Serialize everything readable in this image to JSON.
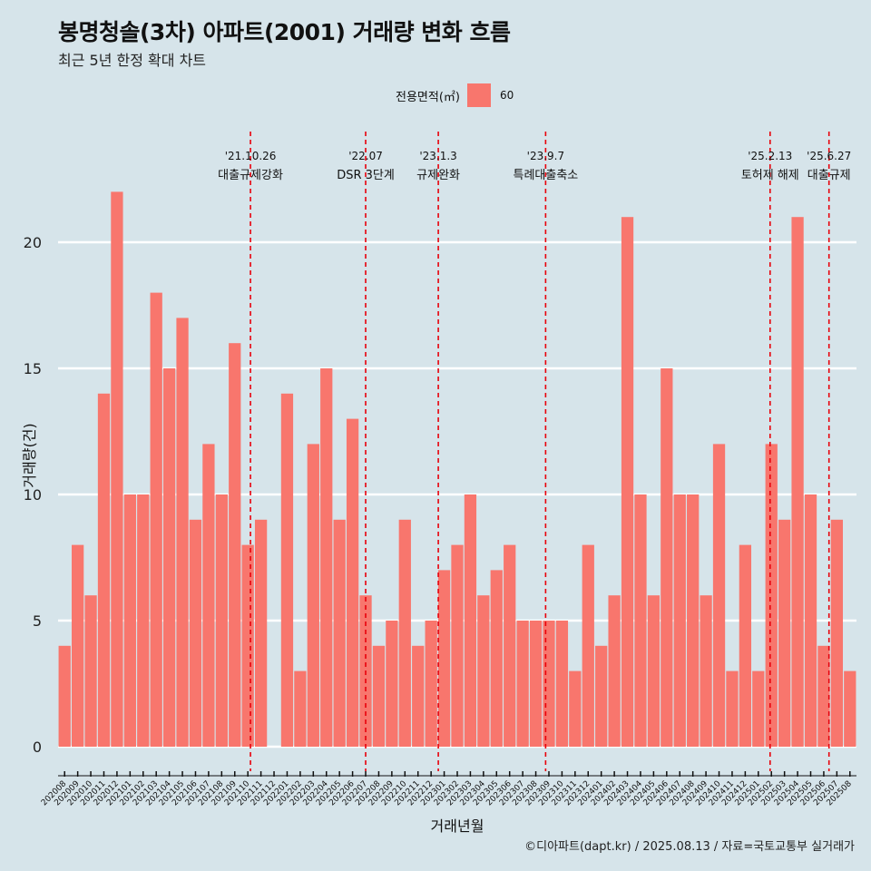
{
  "header": {
    "title": "봉명청솔(3차) 아파트(2001) 거래량 변화 흐름",
    "subtitle": "최근 5년 한정 확대 차트"
  },
  "legend": {
    "title": "전용면적(㎡)",
    "key": "60",
    "color": "#f8766d"
  },
  "caption": "©디아파트(dapt.kr) / 2025.08.13 / 자료=국토교통부 실거래가",
  "chart_data": {
    "type": "bar",
    "xlabel": "거래년월",
    "ylabel": "거래량(건)",
    "ylim": [
      0,
      22
    ],
    "yticks": [
      0,
      5,
      10,
      15,
      20
    ],
    "grid": true,
    "legend_position": "top",
    "bar_color": "#f8766d",
    "categories": [
      "202008",
      "202009",
      "202010",
      "202011",
      "202012",
      "202101",
      "202102",
      "202103",
      "202104",
      "202105",
      "202106",
      "202107",
      "202108",
      "202109",
      "202110",
      "202111",
      "202112",
      "202201",
      "202202",
      "202203",
      "202204",
      "202205",
      "202206",
      "202207",
      "202208",
      "202209",
      "202210",
      "202211",
      "202212",
      "202301",
      "202302",
      "202303",
      "202304",
      "202305",
      "202306",
      "202307",
      "202308",
      "202309",
      "202310",
      "202311",
      "202312",
      "202401",
      "202402",
      "202403",
      "202404",
      "202405",
      "202406",
      "202407",
      "202408",
      "202409",
      "202410",
      "202411",
      "202412",
      "202501",
      "202502",
      "202503",
      "202504",
      "202505",
      "202506",
      "202507",
      "202508"
    ],
    "values": [
      4,
      8,
      6,
      14,
      22,
      10,
      10,
      18,
      15,
      17,
      9,
      12,
      10,
      16,
      8,
      9,
      0,
      14,
      3,
      12,
      15,
      9,
      13,
      6,
      4,
      5,
      9,
      4,
      5,
      7,
      8,
      10,
      6,
      7,
      8,
      5,
      5,
      5,
      5,
      3,
      8,
      4,
      6,
      21,
      10,
      6,
      15,
      10,
      10,
      6,
      12,
      3,
      8,
      3,
      12,
      9,
      21,
      10,
      4,
      9,
      3
    ],
    "annotations": [
      {
        "date": "'21.10.26",
        "label": "대출규제강화",
        "category": "202110",
        "offset": 0.2
      },
      {
        "date": "'22.07",
        "label": "DSR 3단계",
        "category": "202207",
        "offset": 0.0
      },
      {
        "date": "'23.1.3",
        "label": "규제완화",
        "category": "202301",
        "offset": -0.45
      },
      {
        "date": "'23.9.7",
        "label": "특례대출축소",
        "category": "202309",
        "offset": -0.25
      },
      {
        "date": "'25.2.13",
        "label": "토허제 해제",
        "category": "202502",
        "offset": -0.1
      },
      {
        "date": "'25.6.27",
        "label": "대출규제",
        "category": "202506",
        "offset": 0.4
      }
    ]
  }
}
